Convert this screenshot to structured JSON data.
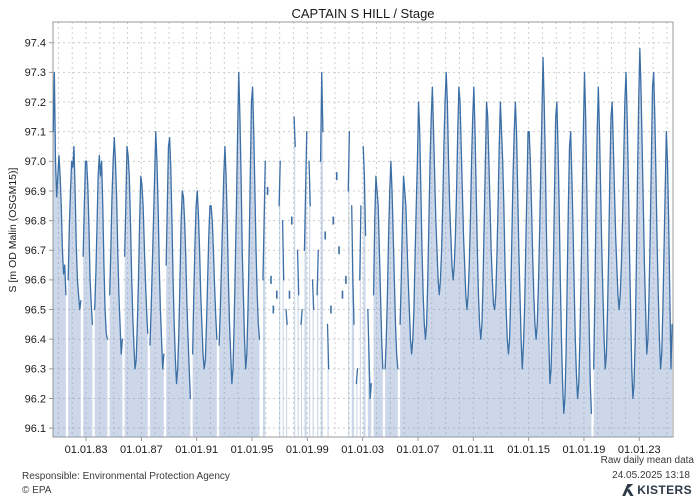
{
  "footer": {
    "data_type": "Raw daily mean data",
    "timestamp": "24.05.2025 13:18",
    "responsible": "Responsible: Environmental Protection Agency",
    "copyright": "© EPA",
    "logo_text": "KISTERS"
  },
  "chart_data": {
    "type": "area",
    "title": "CAPTAIN S HILL / Stage",
    "xlabel": "",
    "ylabel": "S [m OD Malin (OSGM15)]",
    "ylim": [
      96.07,
      97.47
    ],
    "xlim": [
      1980.61,
      2025.44
    ],
    "grid": true,
    "legend_position": "none",
    "line_color": "#3b6fa6",
    "fill_color": "rgba(121,152,196,0.38)",
    "grid_color": "#cdcdcd",
    "border_color": "#9a9a9a",
    "tick_text_color": "#1a1a1a",
    "y_ticks": [
      96.1,
      96.2,
      96.3,
      96.4,
      96.5,
      96.6,
      96.7,
      96.8,
      96.9,
      97.0,
      97.1,
      97.2,
      97.3,
      97.4
    ],
    "x_grid_years": [
      1981,
      2025
    ],
    "x_ticks": [
      {
        "year": 1983,
        "label": "01.01.83"
      },
      {
        "year": 1987,
        "label": "01.01.87"
      },
      {
        "year": 1991,
        "label": "01.01.91"
      },
      {
        "year": 1995,
        "label": "01.01.95"
      },
      {
        "year": 1999,
        "label": "01.01.99"
      },
      {
        "year": 2003,
        "label": "01.01.03"
      },
      {
        "year": 2007,
        "label": "01.01.07"
      },
      {
        "year": 2011,
        "label": "01.01.11"
      },
      {
        "year": 2015,
        "label": "01.01.15"
      },
      {
        "year": 2019,
        "label": "01.01.19"
      },
      {
        "year": 2023,
        "label": "01.01.23"
      }
    ],
    "series": {
      "name": "Stage daily mean",
      "unit": "m OD Malin (OSGM15)",
      "monthly_by_year": [
        {
          "year": 1980,
          "first_month": 8,
          "values": [
            97.1,
            97.3,
            97.0,
            96.88,
            96.95
          ]
        },
        {
          "year": 1981,
          "values": [
            97.02,
            96.95,
            96.85,
            96.7,
            96.62,
            96.65,
            96.55,
            null,
            96.6,
            96.78,
            96.9,
            97.0
          ]
        },
        {
          "year": 1982,
          "values": [
            96.98,
            97.05,
            96.9,
            96.72,
            96.6,
            96.55,
            96.5,
            96.53,
            null,
            96.68,
            96.85,
            97.0
          ]
        },
        {
          "year": 1983,
          "values": [
            97.0,
            96.92,
            96.78,
            96.6,
            96.52,
            96.45,
            null,
            96.5,
            96.62,
            96.78,
            96.95,
            97.02
          ]
        },
        {
          "year": 1984,
          "values": [
            96.95,
            97.0,
            96.85,
            96.65,
            96.5,
            96.42,
            96.4,
            null,
            96.55,
            96.7,
            96.88,
            97.0
          ]
        },
        {
          "year": 1985,
          "values": [
            97.08,
            97.0,
            96.88,
            96.7,
            96.55,
            96.45,
            96.35,
            96.4,
            null,
            96.68,
            96.85,
            97.05
          ]
        },
        {
          "year": 1986,
          "values": [
            97.02,
            96.95,
            96.8,
            96.62,
            96.48,
            96.38,
            96.3,
            96.33,
            96.45,
            96.6,
            96.8,
            96.95
          ]
        },
        {
          "year": 1987,
          "values": [
            96.92,
            96.85,
            96.72,
            96.6,
            96.5,
            96.42,
            null,
            96.38,
            96.5,
            96.65,
            96.8,
            96.95
          ]
        },
        {
          "year": 1988,
          "values": [
            97.1,
            97.0,
            96.85,
            96.65,
            96.5,
            96.4,
            96.3,
            96.35,
            null,
            96.65,
            96.85,
            97.05
          ]
        },
        {
          "year": 1989,
          "values": [
            97.08,
            96.98,
            96.8,
            96.6,
            96.45,
            96.33,
            96.25,
            96.3,
            96.42,
            96.6,
            96.8,
            96.9
          ]
        },
        {
          "year": 1990,
          "values": [
            96.88,
            96.8,
            96.68,
            96.52,
            96.4,
            96.3,
            96.2,
            null,
            96.35,
            96.55,
            96.72,
            96.85
          ]
        },
        {
          "year": 1991,
          "values": [
            96.9,
            96.82,
            96.7,
            96.55,
            96.45,
            96.35,
            96.3,
            96.33,
            96.45,
            96.6,
            96.75,
            96.85
          ]
        },
        {
          "year": 1992,
          "values": [
            96.85,
            96.8,
            96.7,
            96.58,
            96.48,
            96.4,
            null,
            96.38,
            96.5,
            96.65,
            96.8,
            96.95
          ]
        },
        {
          "year": 1993,
          "values": [
            97.05,
            96.95,
            96.8,
            96.6,
            96.45,
            96.35,
            96.25,
            96.3,
            96.45,
            96.65,
            96.85,
            97.1
          ]
        },
        {
          "year": 1994,
          "values": [
            97.3,
            97.15,
            96.95,
            96.7,
            96.55,
            96.4,
            96.3,
            96.35,
            96.5,
            96.7,
            96.95,
            97.2
          ]
        },
        {
          "year": 1995,
          "values": [
            97.25,
            97.1,
            96.9,
            96.7,
            96.55,
            96.45,
            96.4,
            null,
            null,
            96.6,
            96.8,
            97.0
          ]
        },
        {
          "year": 1996,
          "values": [
            null,
            96.9,
            null,
            null,
            96.6,
            null,
            96.5,
            null,
            null,
            96.55,
            null,
            96.85
          ]
        },
        {
          "year": 1997,
          "values": [
            97.0,
            null,
            96.8,
            96.6,
            null,
            96.5,
            96.45,
            null,
            96.55,
            null,
            96.8,
            null
          ]
        },
        {
          "year": 1998,
          "values": [
            97.15,
            97.05,
            null,
            96.7,
            96.55,
            null,
            96.45,
            96.5,
            null,
            96.7,
            96.9,
            97.1
          ]
        },
        {
          "year": 1999,
          "values": [
            null,
            97.0,
            96.85,
            null,
            96.6,
            96.5,
            null,
            null,
            96.55,
            96.7,
            null,
            97.0
          ]
        },
        {
          "year": 2000,
          "values": [
            97.3,
            97.1,
            null,
            96.75,
            null,
            96.45,
            96.3,
            null,
            96.5,
            null,
            96.8,
            null
          ]
        },
        {
          "year": 2001,
          "values": [
            null,
            96.95,
            null,
            96.7,
            null,
            null,
            96.55,
            null,
            null,
            96.6,
            null,
            96.9
          ]
        },
        {
          "year": 2002,
          "values": [
            97.1,
            null,
            96.85,
            96.6,
            96.45,
            null,
            96.25,
            96.3,
            null,
            96.6,
            96.85,
            null
          ]
        },
        {
          "year": 2003,
          "values": [
            97.05,
            96.95,
            96.75,
            null,
            96.5,
            96.35,
            96.2,
            96.25,
            null,
            96.55,
            96.8,
            96.95
          ]
        },
        {
          "year": 2004,
          "values": [
            96.9,
            96.85,
            96.7,
            96.55,
            96.4,
            96.3,
            null,
            96.3,
            96.4,
            96.55,
            96.75,
            96.9
          ]
        },
        {
          "year": 2005,
          "values": [
            97.0,
            96.9,
            96.75,
            96.6,
            96.45,
            96.35,
            96.3,
            null,
            96.45,
            96.6,
            96.8,
            96.95
          ]
        },
        {
          "year": 2006,
          "values": [
            96.9,
            96.85,
            96.72,
            96.6,
            96.5,
            96.4,
            96.35,
            96.4,
            96.5,
            96.68,
            96.85,
            97.0
          ]
        },
        {
          "year": 2007,
          "values": [
            97.2,
            97.1,
            96.9,
            96.7,
            96.55,
            96.45,
            96.4,
            96.45,
            96.6,
            96.8,
            97.0,
            97.15
          ]
        },
        {
          "year": 2008,
          "values": [
            97.25,
            97.1,
            96.95,
            96.8,
            96.7,
            96.6,
            96.55,
            96.6,
            96.7,
            96.85,
            97.05,
            97.2
          ]
        },
        {
          "year": 2009,
          "values": [
            97.3,
            97.2,
            97.0,
            96.85,
            96.75,
            96.65,
            96.6,
            96.65,
            96.75,
            96.9,
            97.1,
            97.25
          ]
        },
        {
          "year": 2010,
          "values": [
            97.2,
            97.05,
            96.9,
            96.75,
            96.65,
            96.55,
            96.5,
            96.55,
            96.65,
            96.8,
            97.0,
            97.15
          ]
        },
        {
          "year": 2011,
          "values": [
            97.25,
            97.1,
            96.9,
            96.7,
            96.55,
            96.45,
            96.4,
            96.45,
            96.6,
            96.8,
            97.0,
            97.2
          ]
        },
        {
          "year": 2012,
          "values": [
            97.15,
            97.0,
            96.85,
            96.7,
            96.6,
            96.52,
            96.5,
            96.55,
            96.68,
            96.85,
            97.05,
            97.2
          ]
        },
        {
          "year": 2013,
          "values": [
            97.1,
            97.0,
            96.85,
            96.65,
            96.5,
            96.4,
            96.35,
            96.4,
            96.55,
            96.75,
            96.95,
            97.1
          ]
        },
        {
          "year": 2014,
          "values": [
            97.2,
            97.1,
            96.9,
            96.7,
            96.55,
            96.4,
            96.3,
            96.38,
            96.5,
            96.7,
            96.9,
            97.1
          ]
        },
        {
          "year": 2015,
          "values": [
            97.1,
            97.0,
            96.85,
            96.68,
            96.55,
            96.45,
            96.4,
            96.45,
            96.58,
            96.75,
            96.95,
            97.15
          ]
        },
        {
          "year": 2016,
          "values": [
            97.35,
            97.2,
            97.0,
            96.75,
            96.55,
            96.4,
            96.25,
            96.3,
            96.45,
            96.65,
            96.9,
            97.15
          ]
        },
        {
          "year": 2017,
          "values": [
            97.2,
            97.05,
            96.85,
            96.6,
            96.4,
            96.25,
            96.15,
            96.2,
            96.35,
            96.6,
            96.85,
            97.05
          ]
        },
        {
          "year": 2018,
          "values": [
            97.1,
            96.95,
            96.78,
            96.58,
            96.4,
            96.28,
            96.2,
            96.25,
            96.4,
            96.6,
            96.85,
            97.1
          ]
        },
        {
          "year": 2019,
          "values": [
            97.3,
            97.15,
            96.9,
            96.65,
            96.45,
            96.25,
            96.15,
            null,
            96.3,
            96.55,
            96.85,
            97.1
          ]
        },
        {
          "year": 2020,
          "values": [
            97.25,
            97.1,
            96.9,
            96.7,
            96.55,
            96.4,
            96.3,
            96.35,
            96.5,
            96.7,
            96.95,
            97.15
          ]
        },
        {
          "year": 2021,
          "values": [
            97.2,
            97.05,
            96.9,
            96.75,
            96.65,
            96.55,
            96.5,
            96.55,
            96.65,
            96.8,
            97.0,
            97.2
          ]
        },
        {
          "year": 2022,
          "values": [
            97.3,
            97.15,
            96.95,
            96.7,
            96.5,
            96.3,
            96.2,
            96.25,
            96.4,
            96.65,
            96.95,
            97.2
          ]
        },
        {
          "year": 2023,
          "values": [
            97.38,
            97.25,
            97.05,
            96.85,
            96.65,
            96.5,
            96.35,
            96.4,
            96.55,
            96.75,
            97.0,
            97.25
          ]
        },
        {
          "year": 2024,
          "values": [
            97.3,
            97.15,
            96.95,
            96.72,
            96.55,
            96.4,
            96.3,
            96.35,
            96.5,
            96.7,
            96.9,
            97.1
          ]
        },
        {
          "year": 2025,
          "first_month": 1,
          "values": [
            97.0,
            96.8,
            96.55,
            96.3,
            96.45
          ]
        }
      ]
    }
  }
}
